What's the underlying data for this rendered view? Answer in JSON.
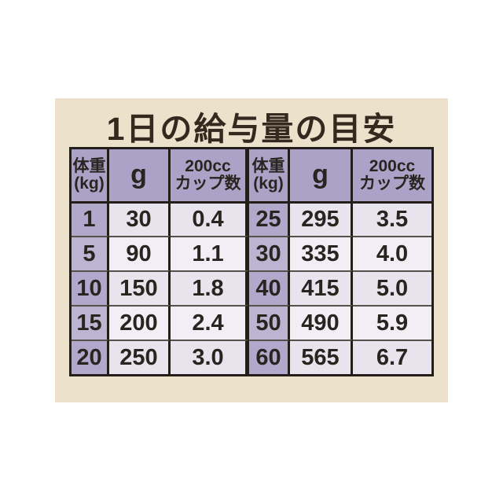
{
  "title": "1日の給与量の目安",
  "colors": {
    "page_bg": "#ffffff",
    "card_bg": "#ece1ca",
    "header_bg": "#aba3c7",
    "weight_col_odd": "#b1a9cb",
    "weight_col_even": "#bcb5d2",
    "data_row_odd": "#e8e4ee",
    "data_row_even": "#f1eff5",
    "border_dark": "#241e1b",
    "row_divider": "#56504d",
    "text": "#2a2420",
    "title_text": "#33291f"
  },
  "table": {
    "halves": [
      {
        "headers": {
          "weight": [
            "体重",
            "(kg)"
          ],
          "grams": [
            "g"
          ],
          "cups": [
            "200cc",
            "カップ数"
          ]
        },
        "rows": [
          {
            "w": "1",
            "g": "30",
            "c": "0.4"
          },
          {
            "w": "5",
            "g": "90",
            "c": "1.1"
          },
          {
            "w": "10",
            "g": "150",
            "c": "1.8"
          },
          {
            "w": "15",
            "g": "200",
            "c": "2.4"
          },
          {
            "w": "20",
            "g": "250",
            "c": "3.0"
          }
        ]
      },
      {
        "headers": {
          "weight": [
            "体重",
            "(kg)"
          ],
          "grams": [
            "g"
          ],
          "cups": [
            "200cc",
            "カップ数"
          ]
        },
        "rows": [
          {
            "w": "25",
            "g": "295",
            "c": "3.5"
          },
          {
            "w": "30",
            "g": "335",
            "c": "4.0"
          },
          {
            "w": "40",
            "g": "415",
            "c": "5.0"
          },
          {
            "w": "50",
            "g": "490",
            "c": "5.9"
          },
          {
            "w": "60",
            "g": "565",
            "c": "6.7"
          }
        ]
      }
    ]
  },
  "chart_data": {
    "type": "table",
    "title": "1日の給与量の目安",
    "columns": [
      "体重(kg)",
      "g",
      "200ccカップ数",
      "体重(kg)",
      "g",
      "200ccカップ数"
    ],
    "rows": [
      [
        "1",
        "30",
        "0.4",
        "25",
        "295",
        "3.5"
      ],
      [
        "5",
        "90",
        "1.1",
        "30",
        "335",
        "4.0"
      ],
      [
        "10",
        "150",
        "1.8",
        "40",
        "415",
        "5.0"
      ],
      [
        "15",
        "200",
        "2.4",
        "50",
        "490",
        "5.9"
      ],
      [
        "20",
        "250",
        "3.0",
        "60",
        "565",
        "6.7"
      ]
    ]
  }
}
